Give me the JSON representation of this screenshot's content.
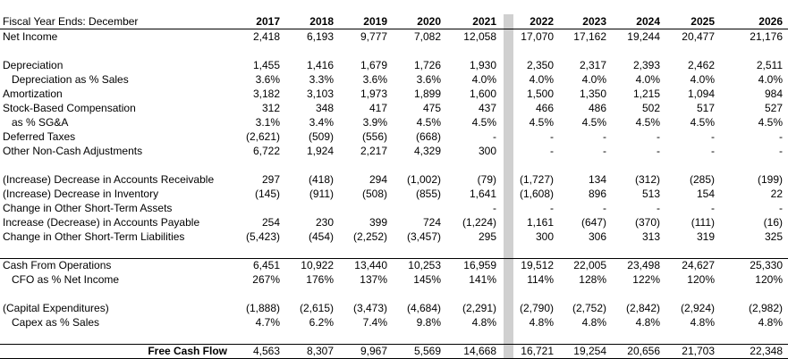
{
  "header": {
    "label": "Fiscal Year Ends: December",
    "years": [
      "2017",
      "2018",
      "2019",
      "2020",
      "2021",
      "2022",
      "2023",
      "2024",
      "2025",
      "2026"
    ]
  },
  "rows": [
    {
      "label": "Net Income",
      "indent": false,
      "bold": false,
      "values": [
        "2,418",
        "6,193",
        "9,777",
        "7,082",
        "12,058",
        "17,070",
        "17,162",
        "19,244",
        "20,477",
        "21,176"
      ]
    },
    {
      "label": "Depreciation",
      "indent": false,
      "bold": false,
      "values": [
        "1,455",
        "1,416",
        "1,679",
        "1,726",
        "1,930",
        "2,350",
        "2,317",
        "2,393",
        "2,462",
        "2,511"
      ]
    },
    {
      "label": "Depreciation as % Sales",
      "indent": true,
      "bold": false,
      "values": [
        "3.6%",
        "3.3%",
        "3.6%",
        "3.6%",
        "4.0%",
        "4.0%",
        "4.0%",
        "4.0%",
        "4.0%",
        "4.0%"
      ]
    },
    {
      "label": "Amortization",
      "indent": false,
      "bold": false,
      "values": [
        "3,182",
        "3,103",
        "1,973",
        "1,899",
        "1,600",
        "1,500",
        "1,350",
        "1,215",
        "1,094",
        "984"
      ]
    },
    {
      "label": "Stock-Based Compensation",
      "indent": false,
      "bold": false,
      "values": [
        "312",
        "348",
        "417",
        "475",
        "437",
        "466",
        "486",
        "502",
        "517",
        "527"
      ]
    },
    {
      "label": "as % SG&A",
      "indent": true,
      "bold": false,
      "values": [
        "3.1%",
        "3.4%",
        "3.9%",
        "4.5%",
        "4.5%",
        "4.5%",
        "4.5%",
        "4.5%",
        "4.5%",
        "4.5%"
      ]
    },
    {
      "label": "Deferred Taxes",
      "indent": false,
      "bold": false,
      "values": [
        "(2,621)",
        "(509)",
        "(556)",
        "(668)",
        "-",
        "-",
        "-",
        "-",
        "-",
        "-"
      ]
    },
    {
      "label": "Other Non-Cash Adjustments",
      "indent": false,
      "bold": false,
      "values": [
        "6,722",
        "1,924",
        "2,217",
        "4,329",
        "300",
        "-",
        "-",
        "-",
        "-",
        "-"
      ]
    },
    {
      "label": "(Increase) Decrease in Accounts Receivable",
      "indent": false,
      "bold": false,
      "values": [
        "297",
        "(418)",
        "294",
        "(1,002)",
        "(79)",
        "(1,727)",
        "134",
        "(312)",
        "(285)",
        "(199)"
      ]
    },
    {
      "label": "(Increase) Decrease in Inventory",
      "indent": false,
      "bold": false,
      "values": [
        "(145)",
        "(911)",
        "(508)",
        "(855)",
        "1,641",
        "(1,608)",
        "896",
        "513",
        "154",
        "22"
      ]
    },
    {
      "label": "Change in Other Short-Term Assets",
      "indent": false,
      "bold": false,
      "values": [
        "",
        "",
        "",
        "",
        "-",
        "-",
        "-",
        "-",
        "-",
        "-"
      ]
    },
    {
      "label": "Increase (Decrease) in Accounts Payable",
      "indent": false,
      "bold": false,
      "values": [
        "254",
        "230",
        "399",
        "724",
        "(1,224)",
        "1,161",
        "(647)",
        "(370)",
        "(111)",
        "(16)"
      ]
    },
    {
      "label": "Change in Other Short-Term Liabilities",
      "indent": false,
      "bold": false,
      "values": [
        "(5,423)",
        "(454)",
        "(2,252)",
        "(3,457)",
        "295",
        "300",
        "306",
        "313",
        "319",
        "325"
      ]
    },
    {
      "label": "Cash From Operations",
      "indent": false,
      "bold": false,
      "values": [
        "6,451",
        "10,922",
        "13,440",
        "10,253",
        "16,959",
        "19,512",
        "22,005",
        "23,498",
        "24,627",
        "25,330"
      ]
    },
    {
      "label": "CFO as % Net Income",
      "indent": true,
      "bold": false,
      "values": [
        "267%",
        "176%",
        "137%",
        "145%",
        "141%",
        "114%",
        "128%",
        "122%",
        "120%",
        "120%"
      ]
    },
    {
      "label": "(Capital Expenditures)",
      "indent": false,
      "bold": false,
      "values": [
        "(1,888)",
        "(2,615)",
        "(3,473)",
        "(4,684)",
        "(2,291)",
        "(2,790)",
        "(2,752)",
        "(2,842)",
        "(2,924)",
        "(2,982)"
      ]
    },
    {
      "label": "Capex as % Sales",
      "indent": true,
      "bold": false,
      "values": [
        "4.7%",
        "6.2%",
        "7.4%",
        "9.8%",
        "4.8%",
        "4.8%",
        "4.8%",
        "4.8%",
        "4.8%",
        "4.8%"
      ]
    },
    {
      "label": "Free Cash Flow",
      "indent": false,
      "bold": true,
      "values": [
        "4,563",
        "8,307",
        "9,967",
        "5,569",
        "14,668",
        "16,721",
        "19,254",
        "20,656",
        "21,703",
        "22,348"
      ]
    }
  ]
}
